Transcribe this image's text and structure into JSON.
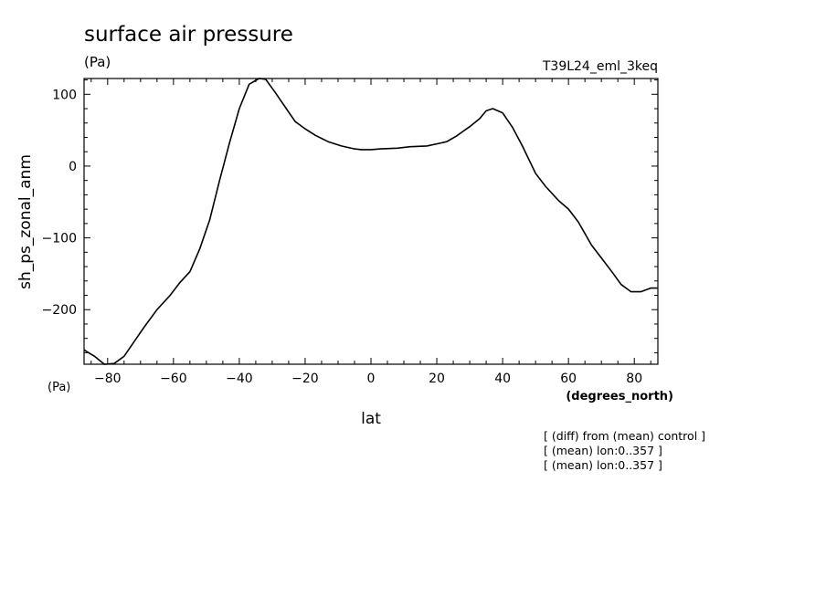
{
  "chart_data": {
    "type": "line",
    "title": "surface air pressure",
    "title_units": "(Pa)",
    "run_label": "T39L24_eml_3keq",
    "ylabel": "sh_ps_zonal_anm",
    "y_units": "(Pa)",
    "xlabel": "lat",
    "x_units": "(degrees_north)",
    "xlim": [
      -87.16,
      87.16
    ],
    "ylim": [
      122,
      -276
    ],
    "y_inverted": true,
    "x_ticks": [
      -80,
      -60,
      -40,
      -20,
      0,
      20,
      40,
      60,
      80
    ],
    "y_ticks": [
      -200,
      -100,
      0,
      100
    ],
    "grid": false,
    "notes": [
      "[ (diff) from (mean) control ]",
      "[ (mean) lon:0..357 ]",
      "[ (mean) lon:0..357 ]"
    ],
    "series": [
      {
        "x": [
          -87.2,
          -84.0,
          -81.0,
          -78.0,
          -75.0,
          -72.0,
          -69.0,
          -65.0,
          -61.0,
          -58.0,
          -55.0,
          -52.0,
          -49.0,
          -46.0,
          -43.0,
          -40.0,
          -37.0,
          -34.0,
          -32.0,
          -29.0,
          -26.0,
          -23.0,
          -20.0,
          -17.0,
          -13.0,
          -9.0,
          -5.0,
          -3.0,
          0.0,
          3.0,
          8.0,
          12.0,
          17.0,
          20.0,
          23.0,
          26.0,
          30.0,
          33.0,
          35.0,
          37.0,
          40.0,
          43.0,
          46.0,
          50.0,
          53.0,
          57.0,
          60.0,
          63.0,
          67.0,
          70.0,
          73.0,
          76.0,
          79.0,
          82.0,
          85.0,
          87.2
        ],
        "y": [
          -256,
          -265,
          -276,
          -275,
          -265,
          -245,
          -225,
          -200,
          -180,
          -162,
          -147,
          -115,
          -75,
          -20,
          32,
          80,
          114,
          124,
          121,
          102,
          82,
          62,
          52,
          43,
          34,
          28,
          24,
          23,
          23,
          24,
          25,
          27,
          28,
          31,
          34,
          42,
          55,
          66,
          77,
          80,
          74,
          54,
          28,
          -10,
          -28,
          -48,
          -60,
          -78,
          -110,
          -128,
          -146,
          -165,
          -175,
          -175,
          -170,
          -170
        ]
      }
    ]
  }
}
